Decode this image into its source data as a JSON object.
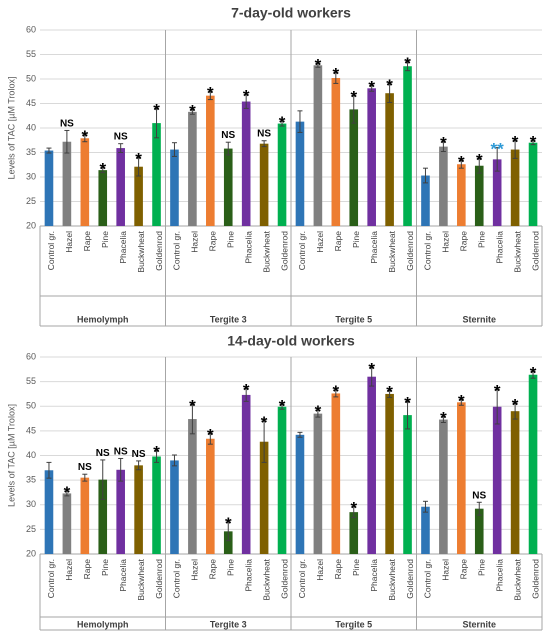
{
  "colors": {
    "Control gr.": "#2e75b6",
    "Hazel": "#808080",
    "Rape": "#ed7d31",
    "Pine": "#2a5f18",
    "Phacelia": "#7030a0",
    "Buckwheat": "#7f6000",
    "Goldenrod": "#00b050",
    "grid": "#d9d9d9",
    "axis_text": "#595959",
    "separator": "#a6a6a6",
    "annotation": "#000000",
    "annotation_blue": "#2e9ad6"
  },
  "chart_data": [
    {
      "type": "bar",
      "title": "7-day-old workers",
      "ylabel": "Levels of TAC [µM Trolox]",
      "ylim": [
        20,
        60
      ],
      "yticks": [
        20,
        25,
        30,
        35,
        40,
        45,
        50,
        55,
        60
      ],
      "grid": true,
      "categories": [
        "Control gr.",
        "Hazel",
        "Rape",
        "Pine",
        "Phacelia",
        "Buckwheat",
        "Goldenrod"
      ],
      "groups": [
        {
          "name": "Hemolymph",
          "values": [
            35.4,
            37.2,
            37.9,
            31.4,
            35.9,
            32.1,
            41.0
          ],
          "errors": [
            0.5,
            2.3,
            0.7,
            0.5,
            0.9,
            1.9,
            3.0
          ],
          "annotations": [
            "",
            "NS",
            "*",
            "*",
            "NS",
            "*",
            "*"
          ]
        },
        {
          "name": "Tergite 3",
          "values": [
            35.6,
            43.3,
            46.6,
            35.8,
            45.4,
            36.8,
            40.9
          ],
          "errors": [
            1.4,
            0.5,
            0.8,
            1.3,
            1.4,
            0.6,
            0.5
          ],
          "annotations": [
            "",
            "*",
            "*",
            "NS",
            "*",
            "NS",
            "*"
          ]
        },
        {
          "name": "Tergite 5",
          "values": [
            41.3,
            52.8,
            50.2,
            43.8,
            48.1,
            47.1,
            52.6
          ],
          "errors": [
            2.2,
            0.4,
            1.1,
            2.8,
            0.6,
            1.9,
            0.9
          ],
          "annotations": [
            "",
            "*",
            "*",
            "*",
            "*",
            "*",
            "*"
          ]
        },
        {
          "name": "Sternite",
          "values": [
            30.3,
            36.2,
            32.6,
            32.3,
            33.6,
            35.6,
            37.0
          ],
          "errors": [
            1.5,
            1.0,
            0.8,
            1.5,
            2.4,
            1.8,
            0.4
          ],
          "annotations": [
            "",
            "*",
            "*",
            "*",
            "**",
            "*",
            "*"
          ]
        }
      ]
    },
    {
      "type": "bar",
      "title": "14-day-old workers",
      "ylabel": "Levels of TAC [µM Trolox]",
      "ylim": [
        20,
        60
      ],
      "yticks": [
        20,
        25,
        30,
        35,
        40,
        45,
        50,
        55,
        60
      ],
      "grid": true,
      "categories": [
        "Control gr.",
        "Hazel",
        "Rape",
        "Pine",
        "Phacelia",
        "Buckwheat",
        "Goldenrod"
      ],
      "groups": [
        {
          "name": "Hemolymph",
          "values": [
            37.0,
            32.3,
            35.5,
            35.1,
            37.1,
            38.0,
            39.8
          ],
          "errors": [
            1.6,
            0.5,
            0.7,
            4.0,
            2.3,
            0.9,
            1.2
          ],
          "annotations": [
            "",
            "*",
            "NS",
            "NS",
            "NS",
            "NS",
            "*"
          ]
        },
        {
          "name": "Tergite 3",
          "values": [
            39.0,
            47.4,
            43.4,
            24.6,
            52.3,
            42.8,
            49.9
          ],
          "errors": [
            1.1,
            3.0,
            1.1,
            1.9,
            1.3,
            4.2,
            0.5
          ],
          "annotations": [
            "",
            "*",
            "*",
            "*",
            "*",
            "*",
            "*"
          ]
        },
        {
          "name": "Tergite 5",
          "values": [
            44.2,
            48.5,
            52.6,
            28.5,
            56.0,
            52.5,
            48.2
          ],
          "errors": [
            0.5,
            0.7,
            0.7,
            1.1,
            1.9,
            0.7,
            2.8
          ],
          "annotations": [
            "",
            "*",
            "*",
            "*",
            "*",
            "*",
            "*"
          ]
        },
        {
          "name": "Sternite",
          "values": [
            29.6,
            47.3,
            50.8,
            29.2,
            49.9,
            49.0,
            56.4
          ],
          "errors": [
            1.1,
            0.6,
            0.6,
            1.3,
            3.5,
            1.6,
            0.7
          ],
          "annotations": [
            "",
            "*",
            "*",
            "NS",
            "*",
            "*",
            "*"
          ]
        }
      ]
    }
  ]
}
